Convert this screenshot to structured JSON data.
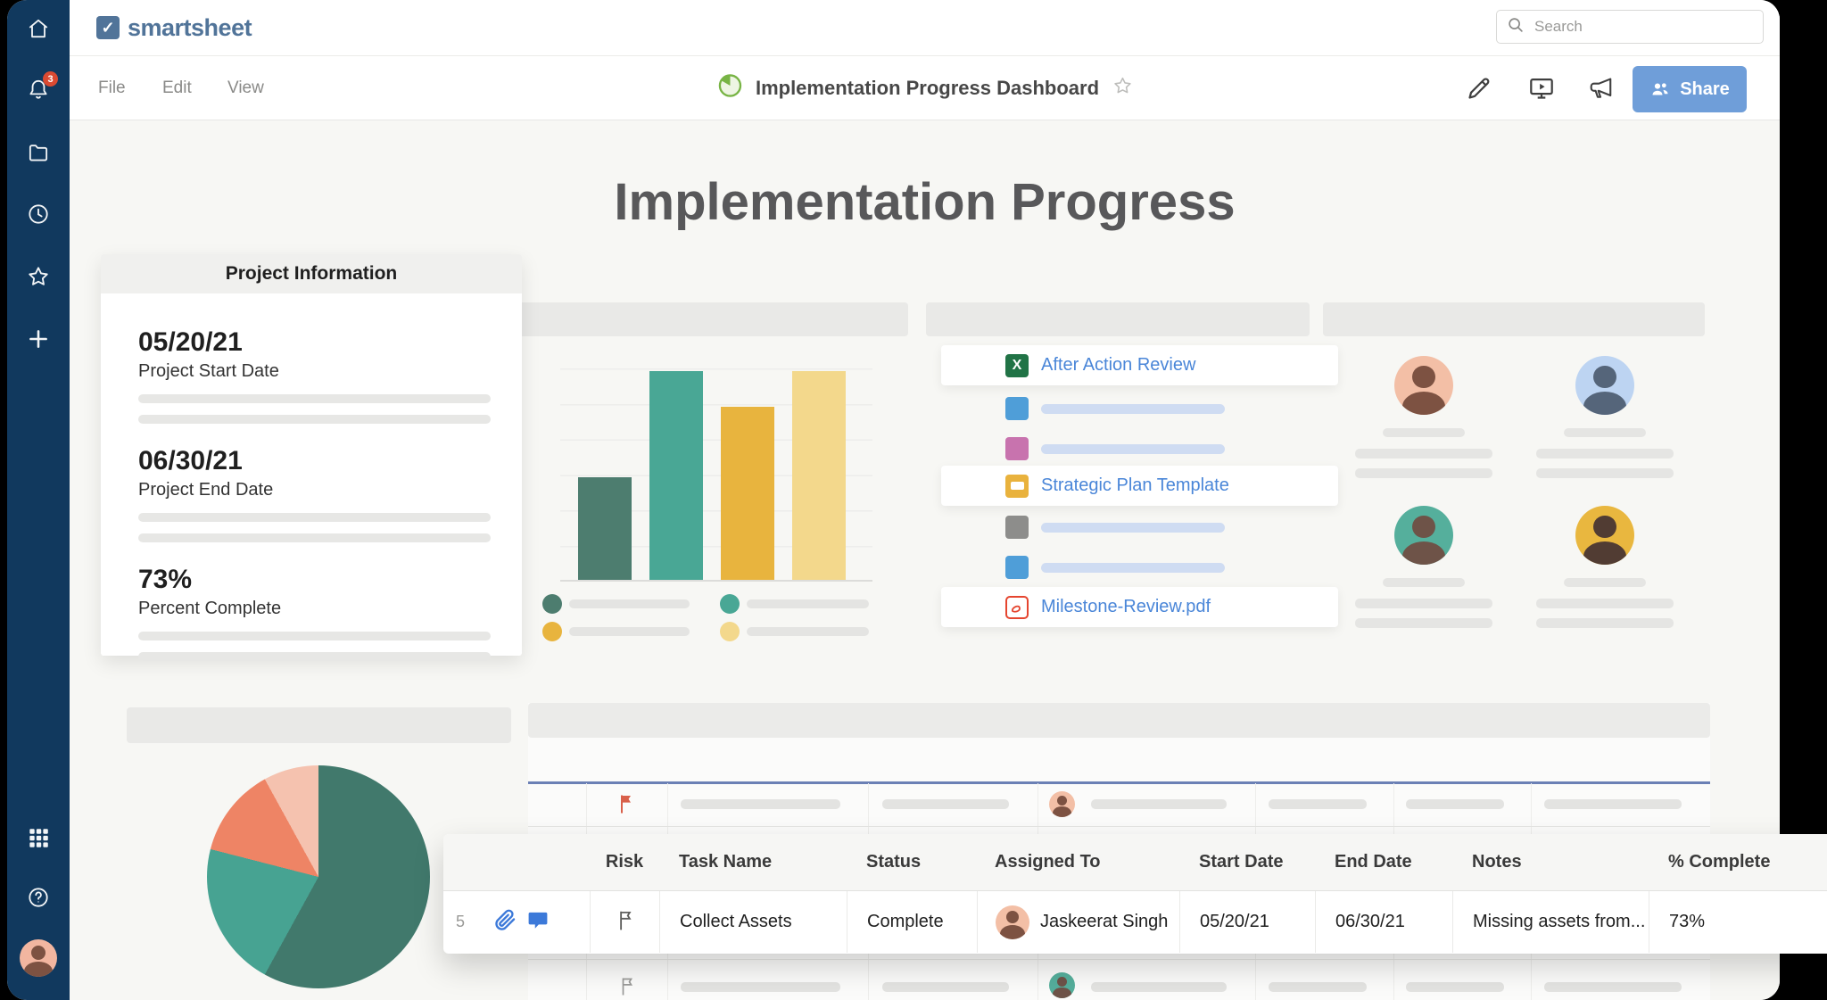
{
  "app": {
    "logo_text": "smartsheet",
    "logo_check": "✓",
    "search_placeholder": "Search",
    "notification_count": "3",
    "menu": [
      "File",
      "Edit",
      "View"
    ],
    "doc_title": "Implementation Progress Dashboard",
    "share_label": "Share"
  },
  "dashboard": {
    "title": "Implementation Progress",
    "project_info": {
      "header": "Project Information",
      "stats": [
        {
          "value": "05/20/21",
          "label": "Project Start Date"
        },
        {
          "value": "06/30/21",
          "label": "Project End Date"
        },
        {
          "value": "73%",
          "label": "Percent Complete"
        }
      ]
    },
    "files": [
      {
        "label": "After Action Review",
        "icon": "excel-file-icon",
        "icon_letter": "X"
      },
      {
        "label": "Strategic Plan Template",
        "icon": "sheet-file-icon"
      },
      {
        "label": "Milestone-Review.pdf",
        "icon": "pdf-file-icon"
      }
    ]
  },
  "chart_data": [
    {
      "type": "bar",
      "title": "",
      "categories": [
        "",
        "",
        "",
        ""
      ],
      "values": [
        48,
        98,
        81,
        98
      ],
      "colors": [
        "#4d7d6f",
        "#49a795",
        "#e8b43e",
        "#f3d88c"
      ],
      "ylim": [
        0,
        100
      ],
      "grid": true,
      "legend_position": "bottom-2x2"
    },
    {
      "type": "pie",
      "labels": [
        "",
        "",
        "",
        ""
      ],
      "values": [
        58,
        21,
        13,
        8
      ],
      "colors": [
        "#41796c",
        "#47a392",
        "#ee8465",
        "#f5c2af"
      ]
    }
  ],
  "table": {
    "headers": [
      "Risk",
      "Task Name",
      "Status",
      "Assigned To",
      "Start Date",
      "End Date",
      "Notes",
      "% Complete"
    ],
    "rows": [
      {
        "row_number": "5",
        "task_name": "Collect Assets",
        "status": "Complete",
        "assigned_to": "Jaskeerat Singh",
        "start_date": "05/20/21",
        "end_date": "06/30/21",
        "notes": "Missing assets from...",
        "percent_complete": "73%"
      }
    ]
  },
  "colors": {
    "sidebar_navy": "#11395e",
    "badge_red": "#da4a32",
    "brand_blue": "#517499",
    "share_button_blue": "#6f9ed9",
    "link_blue": "#4a86d8",
    "title_icon_green": "#78b445",
    "sheet_selection_line": "#6b80b5",
    "red_flag": "#d9604a"
  }
}
